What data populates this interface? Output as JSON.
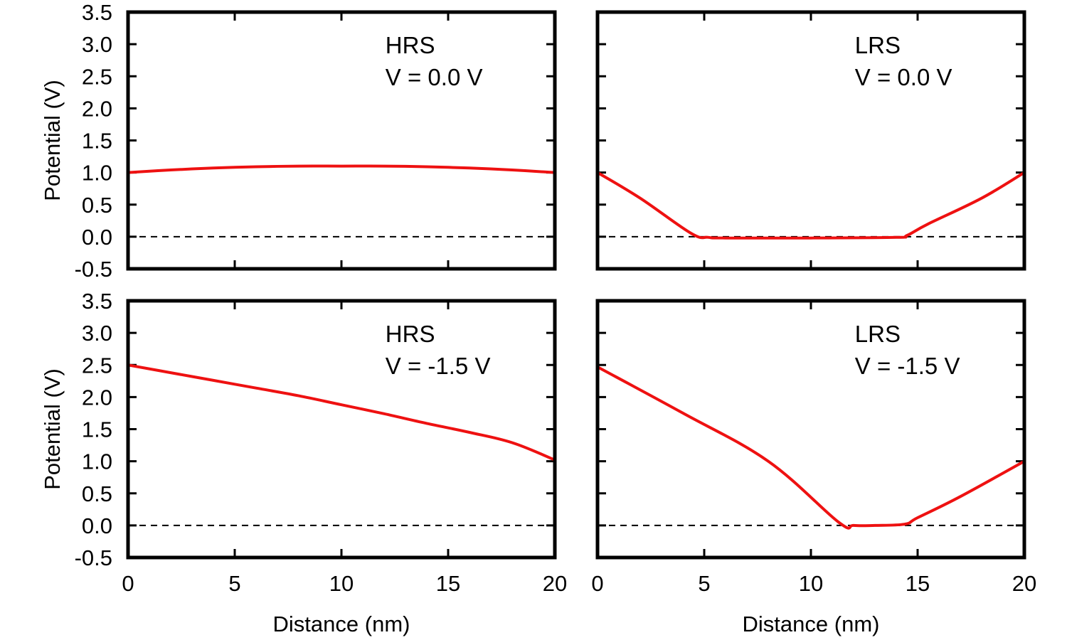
{
  "chart_data": [
    {
      "type": "line",
      "annotation": [
        "HRS",
        "V = 0.0 V"
      ],
      "xlabel": "",
      "ylabel": "Potential (V)",
      "xlim": [
        0,
        20
      ],
      "ylim": [
        -0.5,
        3.5
      ],
      "xticks": [
        "0",
        "5",
        "10",
        "15",
        "20"
      ],
      "yticks": [
        "-0.5",
        "0.0",
        "0.5",
        "1.0",
        "1.5",
        "2.0",
        "2.5",
        "3.0",
        "3.5"
      ],
      "show_xticklabels": false,
      "show_yticklabels": true,
      "reference_line": {
        "y": 0,
        "style": "dashed",
        "color": "#000000"
      },
      "series": [
        {
          "color": "#ee1111",
          "x": [
            0,
            2,
            4,
            6,
            8,
            10,
            12,
            14,
            16,
            18,
            20
          ],
          "y": [
            1.0,
            1.04,
            1.07,
            1.09,
            1.1,
            1.1,
            1.1,
            1.09,
            1.07,
            1.04,
            1.0
          ]
        }
      ]
    },
    {
      "type": "line",
      "annotation": [
        "LRS",
        "V = 0.0 V"
      ],
      "xlabel": "",
      "ylabel": "",
      "xlim": [
        0,
        20
      ],
      "ylim": [
        -0.5,
        3.5
      ],
      "xticks": [
        "0",
        "5",
        "10",
        "15",
        "20"
      ],
      "yticks": [
        "-0.5",
        "0.0",
        "0.5",
        "1.0",
        "1.5",
        "2.0",
        "2.5",
        "3.0",
        "3.5"
      ],
      "show_xticklabels": false,
      "show_yticklabels": false,
      "reference_line": {
        "y": 0,
        "style": "dashed",
        "color": "#000000"
      },
      "series": [
        {
          "color": "#ee1111",
          "x": [
            0,
            2,
            4.4,
            5.2,
            6,
            10,
            14,
            14.5,
            15.5,
            18,
            20
          ],
          "y": [
            1.0,
            0.6,
            0.05,
            -0.01,
            -0.02,
            -0.02,
            -0.01,
            0.02,
            0.2,
            0.6,
            1.0
          ]
        }
      ]
    },
    {
      "type": "line",
      "annotation": [
        "HRS",
        "V = -1.5 V"
      ],
      "xlabel": "Distance (nm)",
      "ylabel": "Potential (V)",
      "xlim": [
        0,
        20
      ],
      "ylim": [
        -0.5,
        3.5
      ],
      "xticks": [
        "0",
        "5",
        "10",
        "15",
        "20"
      ],
      "yticks": [
        "-0.5",
        "0.0",
        "0.5",
        "1.0",
        "1.5",
        "2.0",
        "2.5",
        "3.0",
        "3.5"
      ],
      "show_xticklabels": true,
      "show_yticklabels": true,
      "reference_line": {
        "y": 0,
        "style": "dashed",
        "color": "#000000"
      },
      "series": [
        {
          "color": "#ee1111",
          "x": [
            0,
            2,
            4,
            6,
            8,
            10,
            12,
            14,
            16,
            18,
            20
          ],
          "y": [
            2.5,
            2.38,
            2.26,
            2.14,
            2.02,
            1.88,
            1.74,
            1.59,
            1.45,
            1.29,
            1.02
          ]
        }
      ]
    },
    {
      "type": "line",
      "annotation": [
        "LRS",
        "V = -1.5 V"
      ],
      "xlabel": "Distance (nm)",
      "ylabel": "",
      "xlim": [
        0,
        20
      ],
      "ylim": [
        -0.5,
        3.5
      ],
      "xticks": [
        "0",
        "5",
        "10",
        "15",
        "20"
      ],
      "yticks": [
        "-0.5",
        "0.0",
        "0.5",
        "1.0",
        "1.5",
        "2.0",
        "2.5",
        "3.0",
        "3.5"
      ],
      "show_xticklabels": true,
      "show_yticklabels": false,
      "reference_line": {
        "y": 0,
        "style": "dashed",
        "color": "#000000"
      },
      "series": [
        {
          "color": "#ee1111",
          "x": [
            0,
            4,
            8,
            11.3,
            12,
            13,
            14.4,
            15,
            17,
            20
          ],
          "y": [
            2.47,
            1.75,
            1.0,
            0.05,
            0.0,
            0.0,
            0.02,
            0.12,
            0.45,
            1.0
          ]
        }
      ]
    }
  ]
}
